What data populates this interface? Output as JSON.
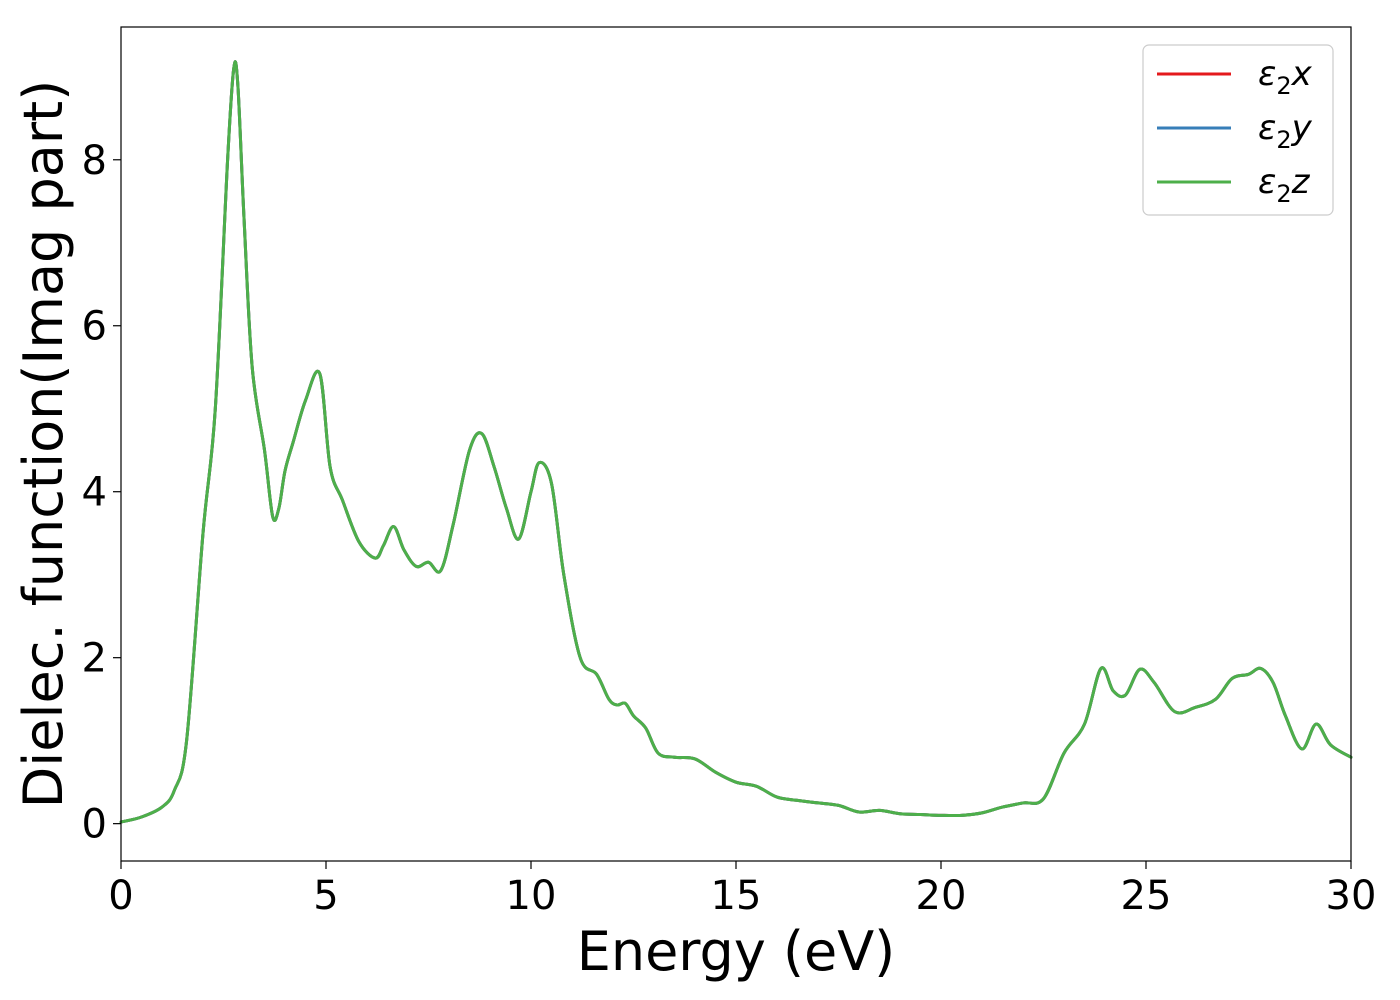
{
  "chart_data": {
    "type": "line",
    "xlabel": "Energy (eV)",
    "ylabel": "Dielec. function(Imag part)",
    "xlim": [
      0,
      30
    ],
    "ylim": [
      -0.45,
      9.6
    ],
    "xticks": [
      0,
      5,
      10,
      15,
      20,
      25,
      30
    ],
    "xtick_labels": [
      "0",
      "5",
      "10",
      "15",
      "20",
      "25",
      "30"
    ],
    "yticks": [
      0,
      2,
      4,
      6,
      8
    ],
    "ytick_labels": [
      "0",
      "2",
      "4",
      "6",
      "8"
    ],
    "grid": false,
    "legend": "top-right",
    "x": [
      0,
      0.5,
      1.0,
      1.3,
      1.6,
      2.0,
      2.3,
      2.6,
      2.75,
      2.85,
      3.0,
      3.2,
      3.5,
      3.7,
      3.85,
      4.0,
      4.2,
      4.5,
      4.85,
      5.1,
      5.4,
      5.8,
      6.2,
      6.4,
      6.65,
      6.9,
      7.2,
      7.5,
      7.8,
      8.1,
      8.5,
      8.8,
      9.1,
      9.4,
      9.7,
      10.0,
      10.2,
      10.5,
      10.8,
      11.2,
      11.6,
      11.9,
      12.1,
      12.3,
      12.5,
      12.8,
      13.1,
      13.5,
      14.0,
      14.5,
      15.0,
      15.5,
      16.0,
      16.5,
      17.0,
      17.5,
      18.0,
      18.5,
      19.0,
      19.5,
      20.0,
      20.5,
      21.0,
      21.5,
      22.0,
      22.5,
      23.0,
      23.5,
      23.9,
      24.2,
      24.5,
      24.85,
      25.2,
      25.7,
      26.2,
      26.7,
      27.1,
      27.5,
      27.8,
      28.1,
      28.4,
      28.8,
      29.15,
      29.5,
      30.0
    ],
    "series": [
      {
        "name": "ε2x",
        "color": "#e41a1c",
        "y": [
          0.02,
          0.08,
          0.2,
          0.4,
          1.0,
          3.5,
          5.0,
          8.0,
          9.1,
          8.9,
          7.3,
          5.5,
          4.5,
          3.7,
          3.8,
          4.25,
          4.6,
          5.1,
          5.42,
          4.3,
          3.9,
          3.4,
          3.2,
          3.35,
          3.58,
          3.3,
          3.1,
          3.15,
          3.05,
          3.6,
          4.5,
          4.7,
          4.3,
          3.8,
          3.43,
          4.0,
          4.35,
          4.1,
          3.0,
          2.0,
          1.8,
          1.5,
          1.43,
          1.45,
          1.3,
          1.15,
          0.85,
          0.8,
          0.78,
          0.62,
          0.5,
          0.45,
          0.32,
          0.28,
          0.25,
          0.22,
          0.14,
          0.16,
          0.12,
          0.11,
          0.1,
          0.1,
          0.13,
          0.2,
          0.25,
          0.3,
          0.85,
          1.2,
          1.87,
          1.6,
          1.55,
          1.86,
          1.7,
          1.35,
          1.4,
          1.5,
          1.75,
          1.8,
          1.87,
          1.7,
          1.3,
          0.9,
          1.2,
          0.95,
          0.8
        ]
      },
      {
        "name": "ε2y",
        "color": "#377eb8",
        "y": [
          0.02,
          0.08,
          0.2,
          0.4,
          1.0,
          3.5,
          5.0,
          8.0,
          9.1,
          8.9,
          7.3,
          5.5,
          4.5,
          3.7,
          3.8,
          4.25,
          4.6,
          5.1,
          5.42,
          4.3,
          3.9,
          3.4,
          3.2,
          3.35,
          3.58,
          3.3,
          3.1,
          3.15,
          3.05,
          3.6,
          4.5,
          4.7,
          4.3,
          3.8,
          3.43,
          4.0,
          4.35,
          4.1,
          3.0,
          2.0,
          1.8,
          1.5,
          1.43,
          1.45,
          1.3,
          1.15,
          0.85,
          0.8,
          0.78,
          0.62,
          0.5,
          0.45,
          0.32,
          0.28,
          0.25,
          0.22,
          0.14,
          0.16,
          0.12,
          0.11,
          0.1,
          0.1,
          0.13,
          0.2,
          0.25,
          0.3,
          0.85,
          1.2,
          1.87,
          1.6,
          1.55,
          1.86,
          1.7,
          1.35,
          1.4,
          1.5,
          1.75,
          1.8,
          1.87,
          1.7,
          1.3,
          0.9,
          1.2,
          0.95,
          0.8
        ]
      },
      {
        "name": "ε2z",
        "color": "#4daf4a",
        "y": [
          0.02,
          0.08,
          0.2,
          0.4,
          1.0,
          3.5,
          5.0,
          8.0,
          9.1,
          8.9,
          7.3,
          5.5,
          4.5,
          3.7,
          3.8,
          4.25,
          4.6,
          5.1,
          5.42,
          4.3,
          3.9,
          3.4,
          3.2,
          3.35,
          3.58,
          3.3,
          3.1,
          3.15,
          3.05,
          3.6,
          4.5,
          4.7,
          4.3,
          3.8,
          3.43,
          4.0,
          4.35,
          4.1,
          3.0,
          2.0,
          1.8,
          1.5,
          1.43,
          1.45,
          1.3,
          1.15,
          0.85,
          0.8,
          0.78,
          0.62,
          0.5,
          0.45,
          0.32,
          0.28,
          0.25,
          0.22,
          0.14,
          0.16,
          0.12,
          0.11,
          0.1,
          0.1,
          0.13,
          0.2,
          0.25,
          0.3,
          0.85,
          1.2,
          1.87,
          1.6,
          1.55,
          1.86,
          1.7,
          1.35,
          1.4,
          1.5,
          1.75,
          1.8,
          1.87,
          1.7,
          1.3,
          0.9,
          1.2,
          0.95,
          0.8
        ]
      }
    ],
    "legend_entries": [
      {
        "base": "ε",
        "sub": "2",
        "var": "x"
      },
      {
        "base": "ε",
        "sub": "2",
        "var": "y"
      },
      {
        "base": "ε",
        "sub": "2",
        "var": "z"
      }
    ]
  }
}
